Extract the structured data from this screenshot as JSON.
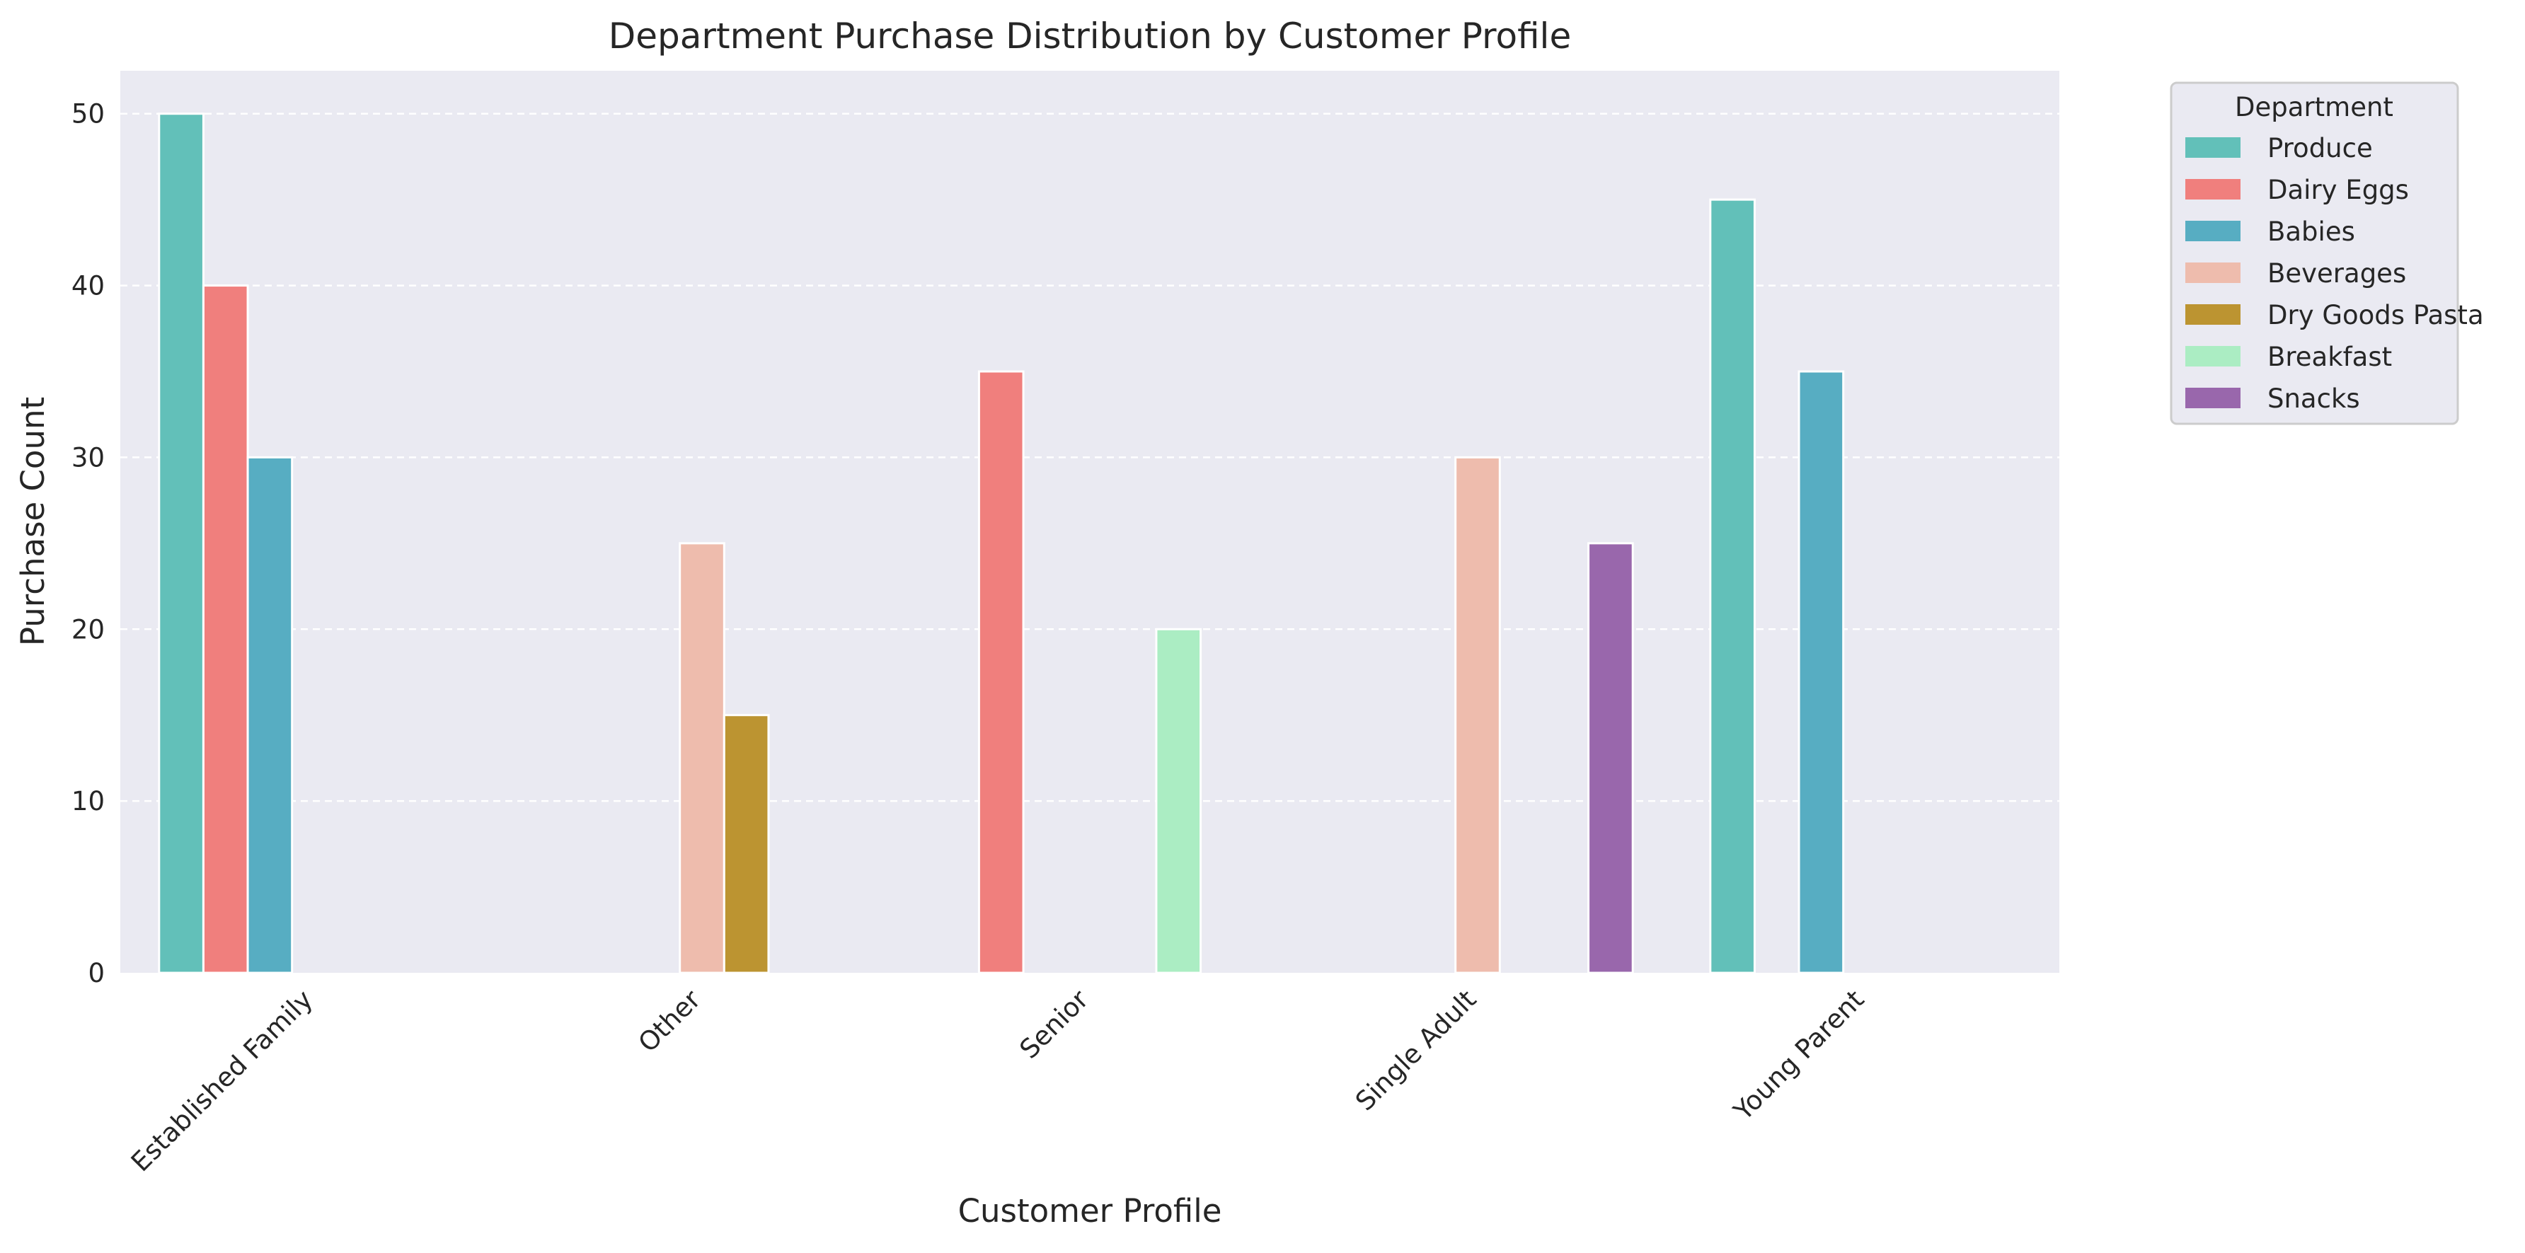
{
  "chart_data": {
    "type": "bar",
    "title": "Department Purchase Distribution by Customer Profile",
    "xlabel": "Customer Profile",
    "ylabel": "Purchase Count",
    "ylim": [
      0,
      52.5
    ],
    "yticks": [
      "0",
      "10",
      "20",
      "30",
      "40",
      "50"
    ],
    "grid": true,
    "legend": {
      "title": "Department",
      "placement": "outside-top-right"
    },
    "categories": [
      "Established Family",
      "Other",
      "Senior",
      "Single Adult",
      "Young Parent"
    ],
    "series": [
      {
        "name": "Produce",
        "color": "#62C0B9",
        "values": [
          50,
          0,
          0,
          0,
          45
        ]
      },
      {
        "name": "Dairy Eggs",
        "color": "#F07F7D",
        "values": [
          40,
          0,
          35,
          0,
          0
        ]
      },
      {
        "name": "Babies",
        "color": "#57ADC2",
        "values": [
          30,
          0,
          0,
          0,
          35
        ]
      },
      {
        "name": "Beverages",
        "color": "#EEBCAD",
        "values": [
          0,
          25,
          0,
          30,
          0
        ]
      },
      {
        "name": "Dry Goods Pasta",
        "color": "#BC9431",
        "values": [
          0,
          15,
          0,
          0,
          0
        ]
      },
      {
        "name": "Breakfast",
        "color": "#ABEDC3",
        "values": [
          0,
          0,
          20,
          0,
          0
        ]
      },
      {
        "name": "Snacks",
        "color": "#9967AC",
        "values": [
          0,
          0,
          0,
          25,
          0
        ]
      }
    ]
  }
}
